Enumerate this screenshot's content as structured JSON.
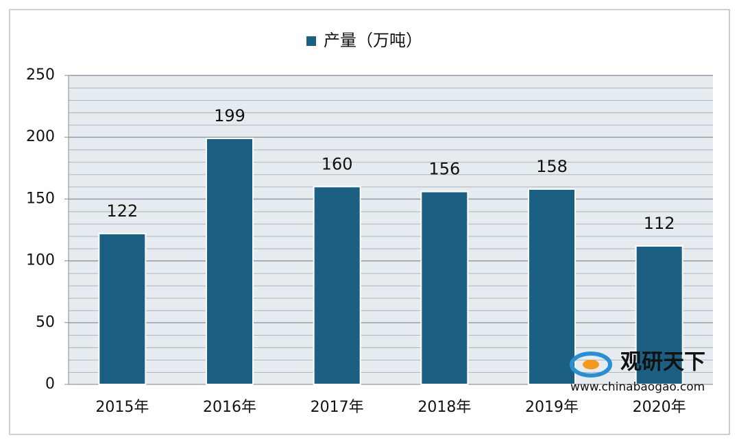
{
  "chart_data": {
    "type": "bar",
    "legend": "产量（万吨）",
    "categories": [
      "2015年",
      "2016年",
      "2017年",
      "2018年",
      "2019年",
      "2020年"
    ],
    "series": [
      {
        "name": "产量（万吨）",
        "color": "#1b5f82",
        "values": [
          122,
          199,
          160,
          156,
          158,
          112
        ]
      }
    ],
    "ylim": [
      0,
      250
    ],
    "yticks": [
      0,
      50,
      100,
      150,
      200,
      250
    ],
    "grid": true
  },
  "watermark": {
    "brand": "观研天下",
    "url": "www.chinabaogao.com"
  }
}
